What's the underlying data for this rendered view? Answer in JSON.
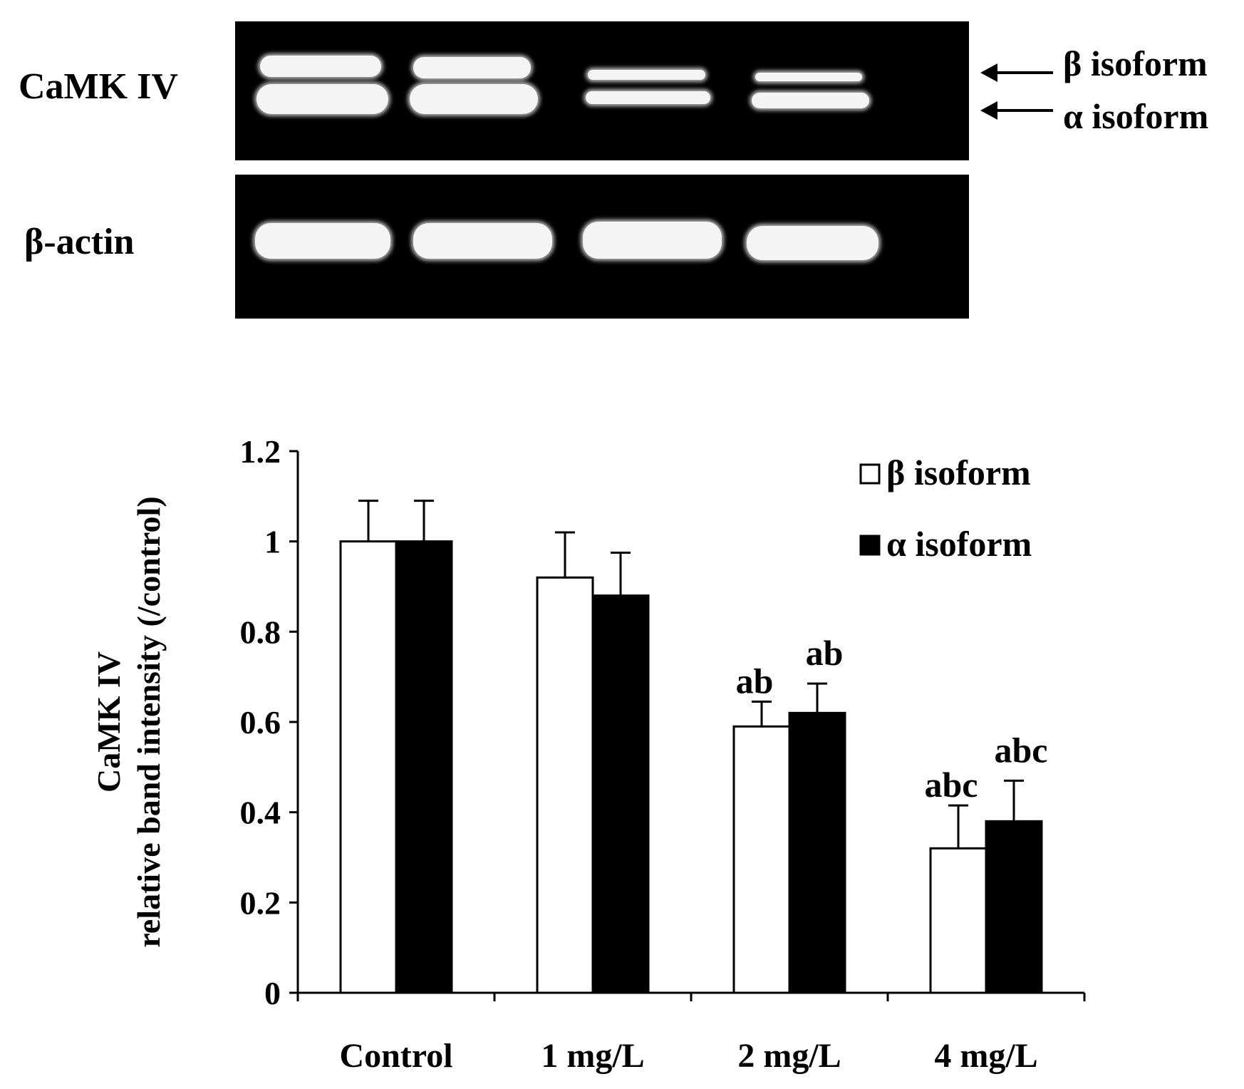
{
  "blot": {
    "camk_label": "CaMK IV",
    "actin_label": "β-actin",
    "beta_label": "β isoform",
    "alpha_label": "α isoform"
  },
  "chart_data": {
    "type": "bar",
    "categories": [
      "Control",
      "1 mg/L",
      "2 mg/L",
      "4 mg/L"
    ],
    "series": [
      {
        "name": "β isoform",
        "color": "#ffffff",
        "values": [
          1.0,
          0.92,
          0.59,
          0.32
        ],
        "errors": [
          0.09,
          0.1,
          0.055,
          0.095
        ],
        "annotations": [
          "",
          "",
          "ab",
          "abc"
        ]
      },
      {
        "name": "α isoform",
        "color": "#000000",
        "values": [
          1.0,
          0.88,
          0.62,
          0.38
        ],
        "errors": [
          0.09,
          0.095,
          0.065,
          0.09
        ],
        "annotations": [
          "",
          "",
          "ab",
          "abc"
        ]
      }
    ],
    "ylabel": [
      "CaMK IV",
      "relative band intensity (/control)"
    ],
    "xlabel": "",
    "ylim": [
      0,
      1.2
    ],
    "yticks": [
      "0",
      "0.2",
      "0.4",
      "0.6",
      "0.8",
      "1",
      "1.2"
    ],
    "legend_position": "top-right",
    "grid": false
  }
}
